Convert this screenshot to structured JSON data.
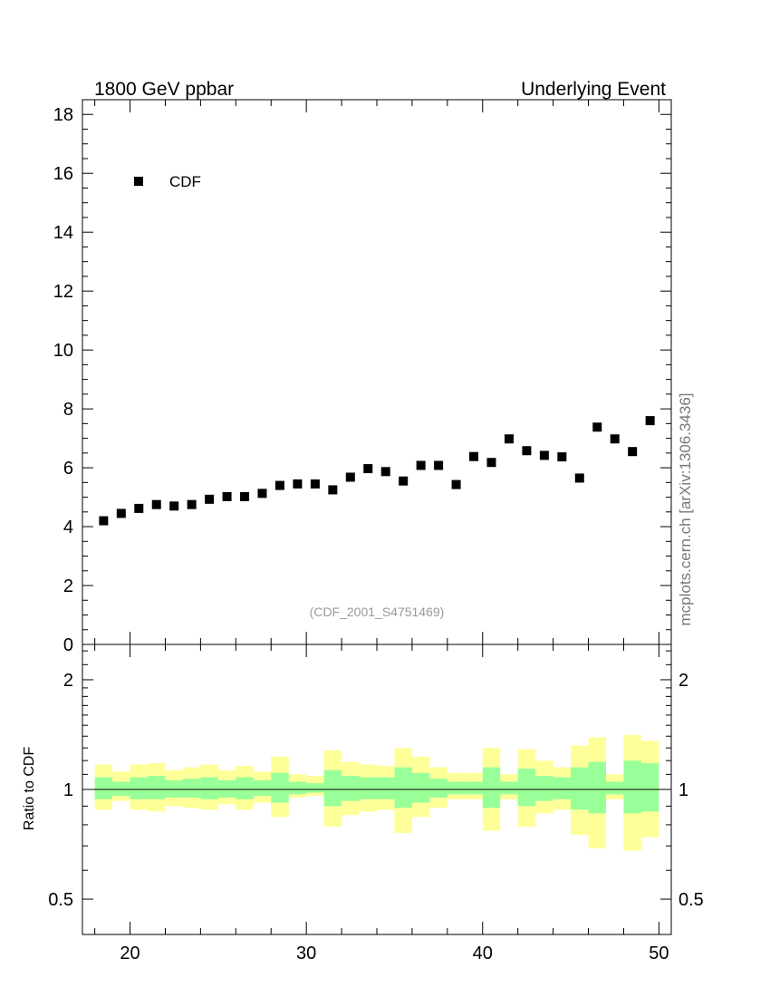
{
  "header": {
    "left": "1800 GeV ppbar",
    "right": "Underlying Event"
  },
  "side_label": "mcplots.cern.ch [arXiv:1306.3436]",
  "watermark": "(CDF_2001_S4751469)",
  "ratio_ylabel": "Ratio to CDF",
  "chart_data": [
    {
      "type": "scatter",
      "panel": "main",
      "xlim": [
        17.3,
        50.7
      ],
      "ylim": [
        0,
        18.5
      ],
      "yticks": [
        0,
        2,
        4,
        6,
        8,
        10,
        12,
        14,
        16,
        18
      ],
      "xticks": [
        20,
        30,
        40,
        50
      ],
      "legend": "top-left",
      "series": [
        {
          "name": "CDF",
          "marker": "square",
          "color": "#000000",
          "x": [
            18.5,
            19.5,
            20.5,
            21.5,
            22.5,
            23.5,
            24.5,
            25.5,
            26.5,
            27.5,
            28.5,
            29.5,
            30.5,
            31.5,
            32.5,
            33.5,
            34.5,
            35.5,
            36.5,
            37.5,
            38.5,
            39.5,
            40.5,
            41.5,
            42.5,
            43.5,
            44.5,
            45.5,
            46.5,
            47.5,
            48.5,
            49.5
          ],
          "y": [
            4.2,
            4.45,
            4.62,
            4.75,
            4.7,
            4.75,
            4.93,
            5.02,
            5.02,
            5.13,
            5.4,
            5.45,
            5.45,
            5.25,
            5.68,
            5.97,
            5.87,
            5.55,
            6.08,
            6.08,
            5.43,
            6.38,
            6.18,
            6.98,
            6.58,
            6.42,
            6.37,
            5.65,
            7.38,
            6.98,
            6.55,
            7.6
          ]
        }
      ]
    },
    {
      "type": "area",
      "panel": "ratio",
      "log_y": true,
      "ylim": [
        0.4,
        2.5
      ],
      "yticks": [
        0.5,
        1,
        2
      ],
      "xlim": [
        17.3,
        50.7
      ],
      "xticks": [
        20,
        30,
        40,
        50
      ],
      "reference_line": 1,
      "bin_edges": [
        18,
        19,
        20,
        21,
        22,
        23,
        24,
        25,
        26,
        27,
        28,
        29,
        30,
        31,
        32,
        33,
        34,
        35,
        36,
        37,
        38,
        39,
        40,
        41,
        42,
        43,
        44,
        45,
        46,
        47,
        48,
        49,
        50
      ],
      "bands": [
        {
          "color": "#ffff99",
          "lower": [
            0.88,
            0.93,
            0.88,
            0.87,
            0.9,
            0.89,
            0.88,
            0.91,
            0.88,
            0.92,
            0.84,
            0.95,
            0.96,
            0.79,
            0.85,
            0.87,
            0.88,
            0.76,
            0.84,
            0.89,
            0.94,
            0.94,
            0.77,
            0.94,
            0.79,
            0.86,
            0.88,
            0.75,
            0.69,
            0.94,
            0.68,
            0.74
          ],
          "upper": [
            1.17,
            1.12,
            1.17,
            1.18,
            1.13,
            1.15,
            1.17,
            1.13,
            1.16,
            1.12,
            1.23,
            1.1,
            1.09,
            1.28,
            1.19,
            1.17,
            1.16,
            1.3,
            1.23,
            1.15,
            1.11,
            1.11,
            1.3,
            1.1,
            1.29,
            1.2,
            1.15,
            1.32,
            1.39,
            1.1,
            1.41,
            1.36
          ]
        },
        {
          "color": "#99ff99",
          "lower": [
            0.94,
            0.96,
            0.94,
            0.94,
            0.95,
            0.95,
            0.94,
            0.95,
            0.94,
            0.96,
            0.92,
            0.97,
            0.98,
            0.9,
            0.93,
            0.94,
            0.94,
            0.89,
            0.92,
            0.95,
            0.97,
            0.97,
            0.89,
            0.97,
            0.9,
            0.93,
            0.94,
            0.88,
            0.86,
            0.97,
            0.86,
            0.87
          ],
          "upper": [
            1.08,
            1.05,
            1.08,
            1.09,
            1.06,
            1.07,
            1.08,
            1.06,
            1.08,
            1.06,
            1.11,
            1.05,
            1.04,
            1.13,
            1.09,
            1.08,
            1.08,
            1.15,
            1.11,
            1.07,
            1.05,
            1.05,
            1.15,
            1.05,
            1.14,
            1.09,
            1.08,
            1.15,
            1.19,
            1.05,
            1.2,
            1.18
          ]
        }
      ]
    }
  ]
}
